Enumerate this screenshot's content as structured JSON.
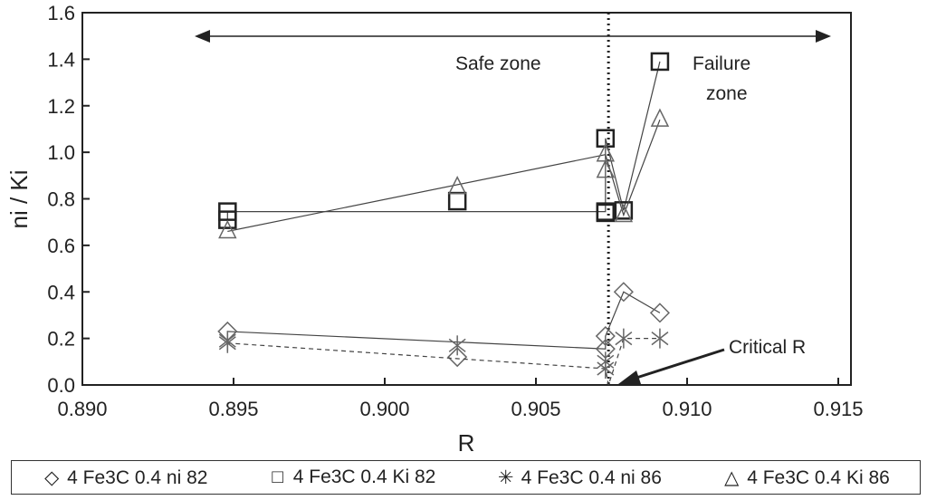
{
  "chart_data": {
    "type": "scatter",
    "xlabel": "R",
    "ylabel": "ni / Ki",
    "xlim": [
      0.89,
      0.915
    ],
    "ylim": [
      0,
      1.6
    ],
    "xticks": [
      "0.890",
      "0.895",
      "0.900",
      "0.905",
      "0.910",
      "0.915"
    ],
    "yticks": [
      "0.0",
      "0.2",
      "0.4",
      "0.6",
      "0.8",
      "1.0",
      "1.2",
      "1.4",
      "1.6"
    ],
    "critical_r": 0.9074,
    "annotations": {
      "safe": "Safe zone",
      "failure_1": "Failure",
      "failure_2": "zone",
      "critical": "Critical R"
    },
    "series": [
      {
        "name": "4 Fe3C 0.4 ni 82",
        "marker": "diamond",
        "line": "solid",
        "points": [
          [
            0.8948,
            0.23
          ],
          [
            0.9073,
            0.155
          ],
          [
            0.9073,
            0.21
          ],
          [
            0.9079,
            0.4
          ],
          [
            0.9091,
            0.31
          ]
        ],
        "extra": [
          [
            0.9024,
            0.12
          ]
        ]
      },
      {
        "name": "4 Fe3C 0.4 Ki 82",
        "marker": "square",
        "line": "solid",
        "points": [
          [
            0.8948,
            0.71
          ],
          [
            0.8948,
            0.745
          ],
          [
            0.9073,
            0.745
          ],
          [
            0.9073,
            1.06
          ],
          [
            0.9079,
            0.75
          ],
          [
            0.9091,
            1.39
          ]
        ],
        "extra": [
          [
            0.9024,
            0.79
          ],
          [
            0.9073,
            0.74
          ]
        ]
      },
      {
        "name": "4 Fe3C 0.4 ni 86",
        "marker": "star",
        "line": "dashed",
        "points": [
          [
            0.8948,
            0.18
          ],
          [
            0.9073,
            0.07
          ],
          [
            0.9074,
            0.0
          ],
          [
            0.9079,
            0.2
          ],
          [
            0.9091,
            0.2
          ]
        ],
        "extra": [
          [
            0.8948,
            0.19
          ],
          [
            0.9024,
            0.17
          ],
          [
            0.9073,
            0.1
          ]
        ]
      },
      {
        "name": "4 Fe3C 0.4 Ki 86",
        "marker": "triangle",
        "line": "solid",
        "points": [
          [
            0.8948,
            0.66
          ],
          [
            0.9073,
            0.99
          ],
          [
            0.9079,
            0.73
          ],
          [
            0.9091,
            1.14
          ]
        ],
        "extra": [
          [
            0.9024,
            0.85
          ],
          [
            0.9073,
            0.92
          ]
        ]
      }
    ]
  }
}
